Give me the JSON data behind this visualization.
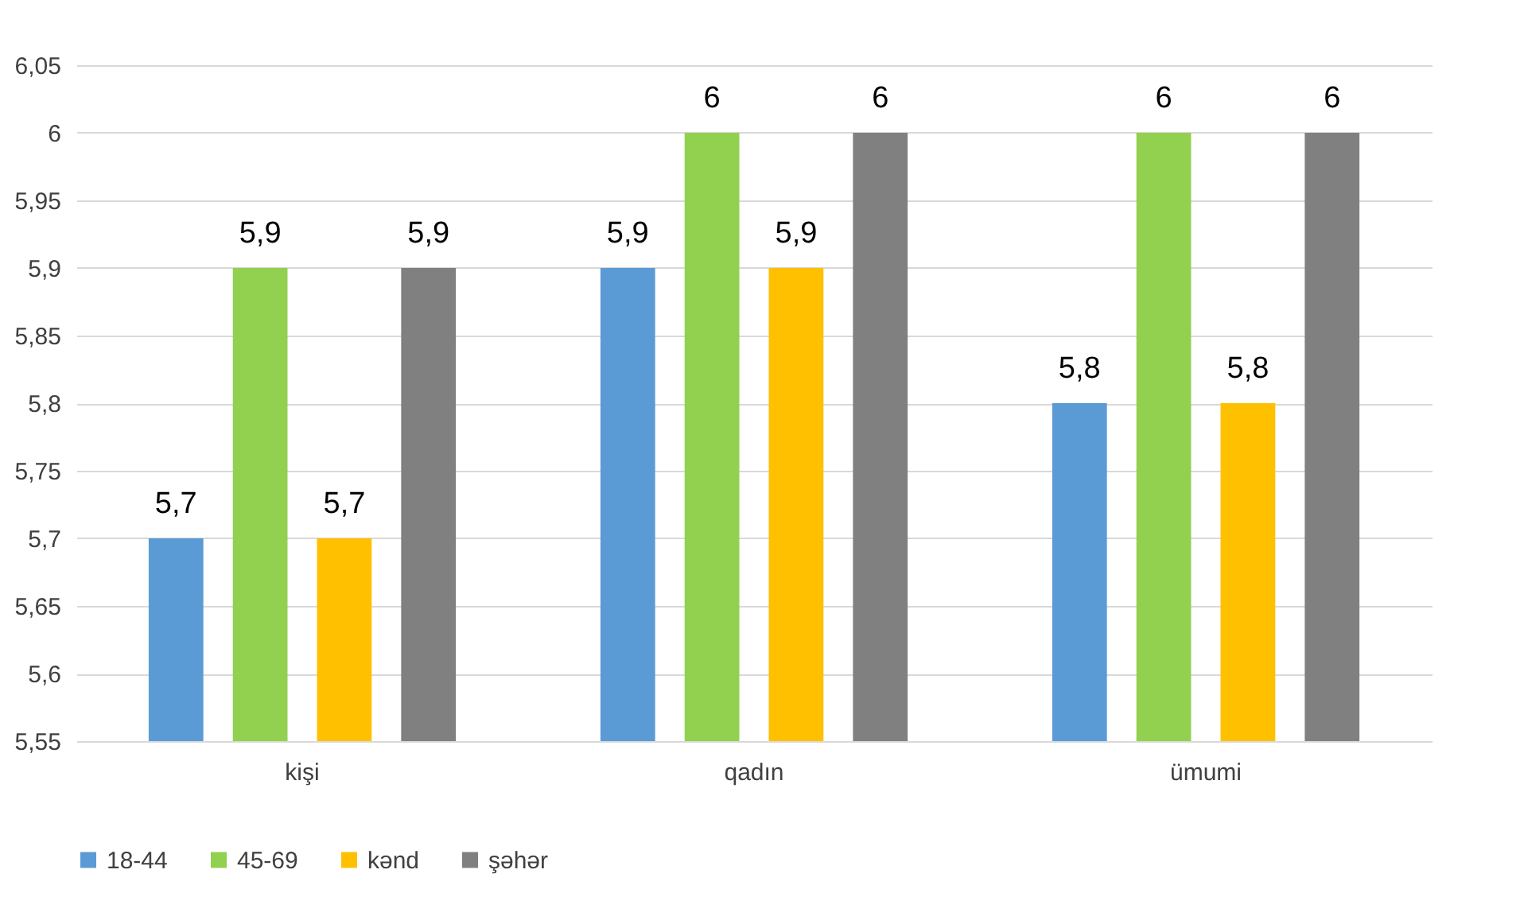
{
  "chart_data": {
    "type": "bar",
    "categories": [
      "kişi",
      "qadın",
      "ümumi"
    ],
    "series": [
      {
        "name": "18-44",
        "color": "#5b9bd5",
        "values": [
          5.7,
          5.9,
          5.8
        ],
        "value_labels": [
          "5,7",
          "5,9",
          "5,8"
        ]
      },
      {
        "name": "45-69",
        "color": "#92d050",
        "values": [
          5.9,
          6,
          6
        ],
        "value_labels": [
          "5,9",
          "6",
          "6"
        ]
      },
      {
        "name": "kənd",
        "color": "#ffc000",
        "values": [
          5.7,
          5.9,
          5.8
        ],
        "value_labels": [
          "5,7",
          "5,9",
          "5,8"
        ]
      },
      {
        "name": "şəhər",
        "color": "#808080",
        "values": [
          5.9,
          6,
          6
        ],
        "value_labels": [
          "5,9",
          "6",
          "6"
        ]
      }
    ],
    "ylim": [
      5.55,
      6.05
    ],
    "yticks": [
      {
        "value": 5.55,
        "label": "5,55"
      },
      {
        "value": 5.6,
        "label": "5,6"
      },
      {
        "value": 5.65,
        "label": "5,65"
      },
      {
        "value": 5.7,
        "label": "5,7"
      },
      {
        "value": 5.75,
        "label": "5,75"
      },
      {
        "value": 5.8,
        "label": "5,8"
      },
      {
        "value": 5.85,
        "label": "5,85"
      },
      {
        "value": 5.9,
        "label": "5,9"
      },
      {
        "value": 5.95,
        "label": "5,95"
      },
      {
        "value": 6,
        "label": "6"
      },
      {
        "value": 6.05,
        "label": "6,05"
      }
    ],
    "grid": "y",
    "legend": "bottom"
  }
}
